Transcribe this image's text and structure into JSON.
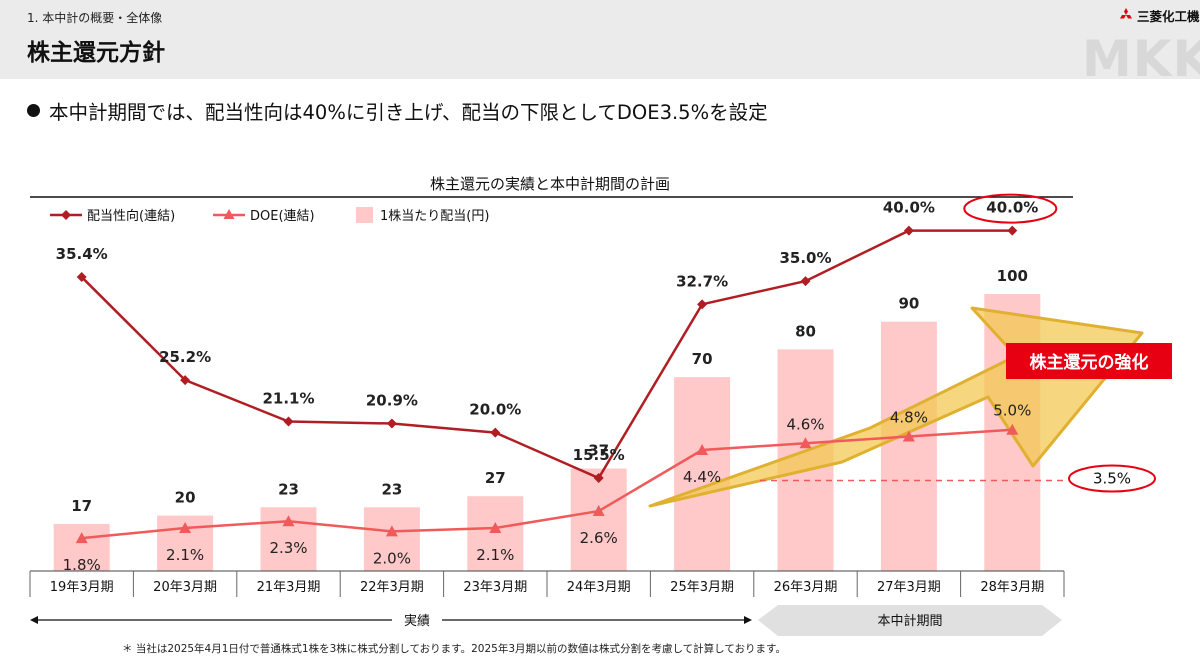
{
  "header": {
    "section": "1. 本中計の概要・全体像",
    "title": "株主還元方針",
    "logo_text": "三菱化工機",
    "watermark": "MKK"
  },
  "bullet": "本中計期間では、配当性向は40%に引き上げ、配当の下限としてDOE3.5%を設定",
  "chart_data": {
    "type": "bar",
    "title": "株主還元の実績と本中計期間の計画",
    "categories": [
      "19年3月期",
      "20年3月期",
      "21年3月期",
      "22年3月期",
      "23年3月期",
      "24年3月期",
      "25年3月期",
      "26年3月期",
      "27年3月期",
      "28年3月期"
    ],
    "series": [
      {
        "name": "配当性向(連結)",
        "kind": "line",
        "color": "#b01e23",
        "values": [
          35.4,
          25.2,
          21.1,
          20.9,
          20.0,
          15.5,
          32.7,
          35.0,
          40.0,
          40.0
        ],
        "labels": [
          "35.4%",
          "25.2%",
          "21.1%",
          "20.9%",
          "20.0%",
          "15.5%",
          "32.7%",
          "35.0%",
          "40.0%",
          "40.0%"
        ]
      },
      {
        "name": "DOE(連結)",
        "kind": "line",
        "color": "#f05a5a",
        "values": [
          1.8,
          2.1,
          2.3,
          2.0,
          2.1,
          2.6,
          4.4,
          4.6,
          4.8,
          5.0
        ],
        "labels": [
          "1.8%",
          "2.1%",
          "2.3%",
          "2.0%",
          "2.1%",
          "2.6%",
          "4.4%",
          "4.6%",
          "4.8%",
          "5.0%"
        ]
      },
      {
        "name": "1株当たり配当(円)",
        "kind": "bar",
        "color": "#ffc9c9",
        "values": [
          17,
          20,
          23,
          23,
          27,
          37,
          70,
          80,
          90,
          100
        ],
        "labels": [
          "17",
          "20",
          "23",
          "23",
          "27",
          "37",
          "70",
          "80",
          "90",
          "100"
        ]
      }
    ],
    "doe_floor": {
      "value": 3.5,
      "label": "3.5%"
    },
    "callout": "株主還元の強化",
    "periods": [
      {
        "label": "実績",
        "from": "19年3月期",
        "to": "25年3月期"
      },
      {
        "label": "本中計期間",
        "from": "26年3月期",
        "to": "28年3月期"
      }
    ],
    "legend_position": "top-left",
    "grid": false
  },
  "footnote": "＊ 当社は2025年4月1日付で普通株式1株を3株に株式分割しております。2025年3月期以前の数値は株式分割を考慮して計算しております。",
  "colors": {
    "accent_red": "#e60012",
    "arrow_gold": "#f3c84d",
    "bar_pink": "#ffc9c9"
  }
}
